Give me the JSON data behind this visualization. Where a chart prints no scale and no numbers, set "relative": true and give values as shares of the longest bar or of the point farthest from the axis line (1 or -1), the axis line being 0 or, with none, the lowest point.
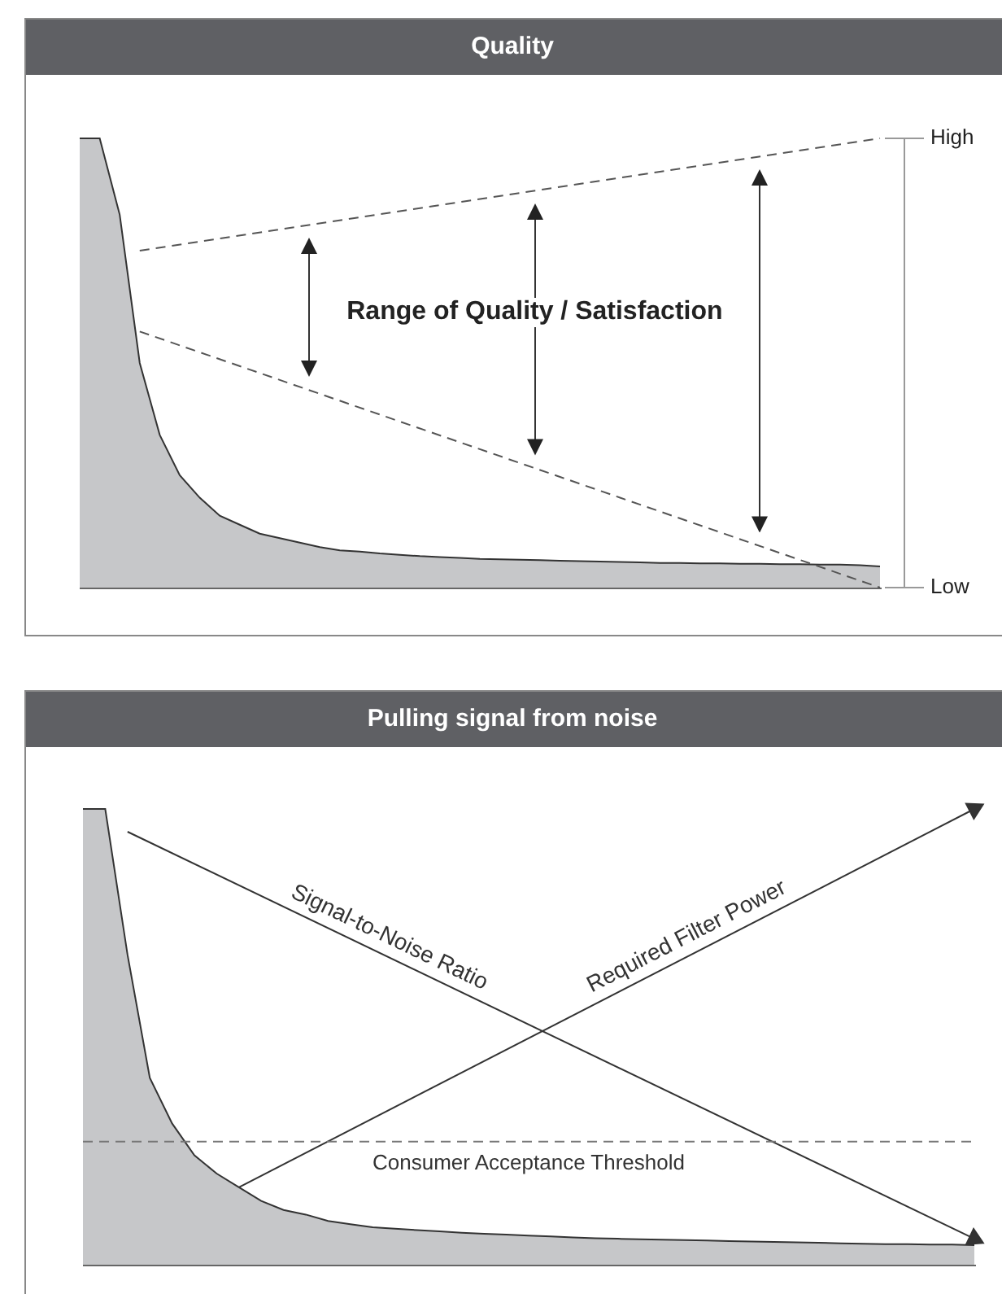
{
  "chart_data": [
    {
      "type": "area",
      "title": "Quality",
      "categories": [
        null,
        null,
        null,
        null,
        null,
        null,
        null,
        null,
        null,
        null,
        null,
        null,
        null,
        null,
        null,
        null,
        null,
        null,
        null,
        null,
        null,
        null,
        null,
        null,
        null,
        null,
        null,
        null,
        null,
        null,
        null,
        null,
        null,
        null,
        null,
        null,
        null,
        null,
        null,
        null,
        null
      ],
      "series": [
        {
          "color": "#c6c7c9",
          "values": [
            1,
            1,
            0.83,
            0.5,
            0.34,
            0.25,
            0.2,
            0.16,
            0.14,
            0.12,
            0.11,
            0.1,
            0.09,
            0.083,
            0.08,
            0.076,
            0.073,
            0.07,
            0.068,
            0.066,
            0.064,
            0.063,
            0.062,
            0.061,
            0.06,
            0.059,
            0.058,
            0.057,
            0.056,
            0.055,
            0.055,
            0.054,
            0.054,
            0.053,
            0.053,
            0.052,
            0.052,
            0.051,
            0.051,
            0.05,
            0.047
          ]
        },
        {
          "type": "line",
          "color": "#555555",
          "line_style": "dashed",
          "values": [
            null,
            null,
            null,
            0.75,
            null,
            null,
            null,
            null,
            null,
            null,
            null,
            null,
            null,
            null,
            null,
            null,
            null,
            null,
            null,
            null,
            null,
            null,
            null,
            null,
            null,
            null,
            null,
            null,
            null,
            null,
            null,
            null,
            null,
            null,
            null,
            null,
            null,
            null,
            null,
            null,
            1
          ]
        },
        {
          "type": "line",
          "color": "#555555",
          "line_style": "dashed",
          "values": [
            null,
            null,
            null,
            0.57,
            null,
            null,
            null,
            null,
            null,
            null,
            null,
            null,
            null,
            null,
            null,
            null,
            null,
            null,
            null,
            null,
            null,
            null,
            null,
            null,
            null,
            null,
            null,
            null,
            null,
            null,
            null,
            null,
            null,
            null,
            null,
            null,
            null,
            null,
            null,
            null,
            0
          ]
        }
      ],
      "relative": true,
      "tick_labels": false,
      "annotations": [
        "Range of Quality / Satisfaction",
        "High",
        "Low"
      ]
    },
    {
      "type": "area",
      "title": "Pulling signal from noise",
      "relative": true,
      "categories": [
        null,
        null,
        null,
        null,
        null,
        null,
        null,
        null,
        null,
        null,
        null,
        null,
        null,
        null,
        null,
        null,
        null,
        null,
        null,
        null,
        null,
        null,
        null,
        null,
        null,
        null,
        null,
        null,
        null,
        null,
        null,
        null,
        null,
        null,
        null,
        null,
        null,
        null,
        null,
        null,
        null
      ],
      "series": [
        {
          "color": "#c6c7c9",
          "values": [
            1,
            1,
            0.68,
            0.41,
            0.31,
            0.24,
            0.2,
            0.17,
            0.14,
            0.12,
            0.11,
            0.096,
            0.089,
            0.082,
            0.079,
            0.076,
            0.073,
            0.07,
            0.068,
            0.066,
            0.064,
            0.062,
            0.06,
            0.058,
            0.057,
            0.056,
            0.055,
            0.054,
            0.053,
            0.052,
            0.051,
            0.05,
            0.049,
            0.048,
            0.047,
            0.046,
            0.045,
            0.045,
            0.044,
            0.044,
            0.043
          ]
        },
        {
          "type": "line",
          "name": "Signal-to-Noise Ratio",
          "color": "#333333",
          "values": [
            null,
            null,
            0.95,
            null,
            null,
            null,
            null,
            null,
            null,
            null,
            null,
            null,
            null,
            null,
            null,
            null,
            null,
            null,
            null,
            null,
            null,
            null,
            null,
            null,
            null,
            null,
            null,
            null,
            null,
            null,
            null,
            null,
            null,
            null,
            null,
            null,
            null,
            null,
            null,
            null,
            0.057
          ]
        },
        {
          "type": "line",
          "name": "Required Filter Power",
          "color": "#333333",
          "values": [
            null,
            null,
            null,
            null,
            null,
            null,
            null,
            0.17,
            null,
            null,
            null,
            null,
            null,
            null,
            null,
            null,
            null,
            null,
            null,
            null,
            null,
            null,
            null,
            null,
            null,
            null,
            null,
            null,
            null,
            null,
            null,
            null,
            null,
            null,
            null,
            null,
            null,
            null,
            null,
            null,
            1
          ]
        }
      ],
      "ref_lines": [
        {
          "axis": "y",
          "value": 0.27,
          "label": "Consumer Acceptance Threshold",
          "color": "#777777",
          "line_style": "dashed"
        }
      ],
      "tick_labels": false
    }
  ]
}
